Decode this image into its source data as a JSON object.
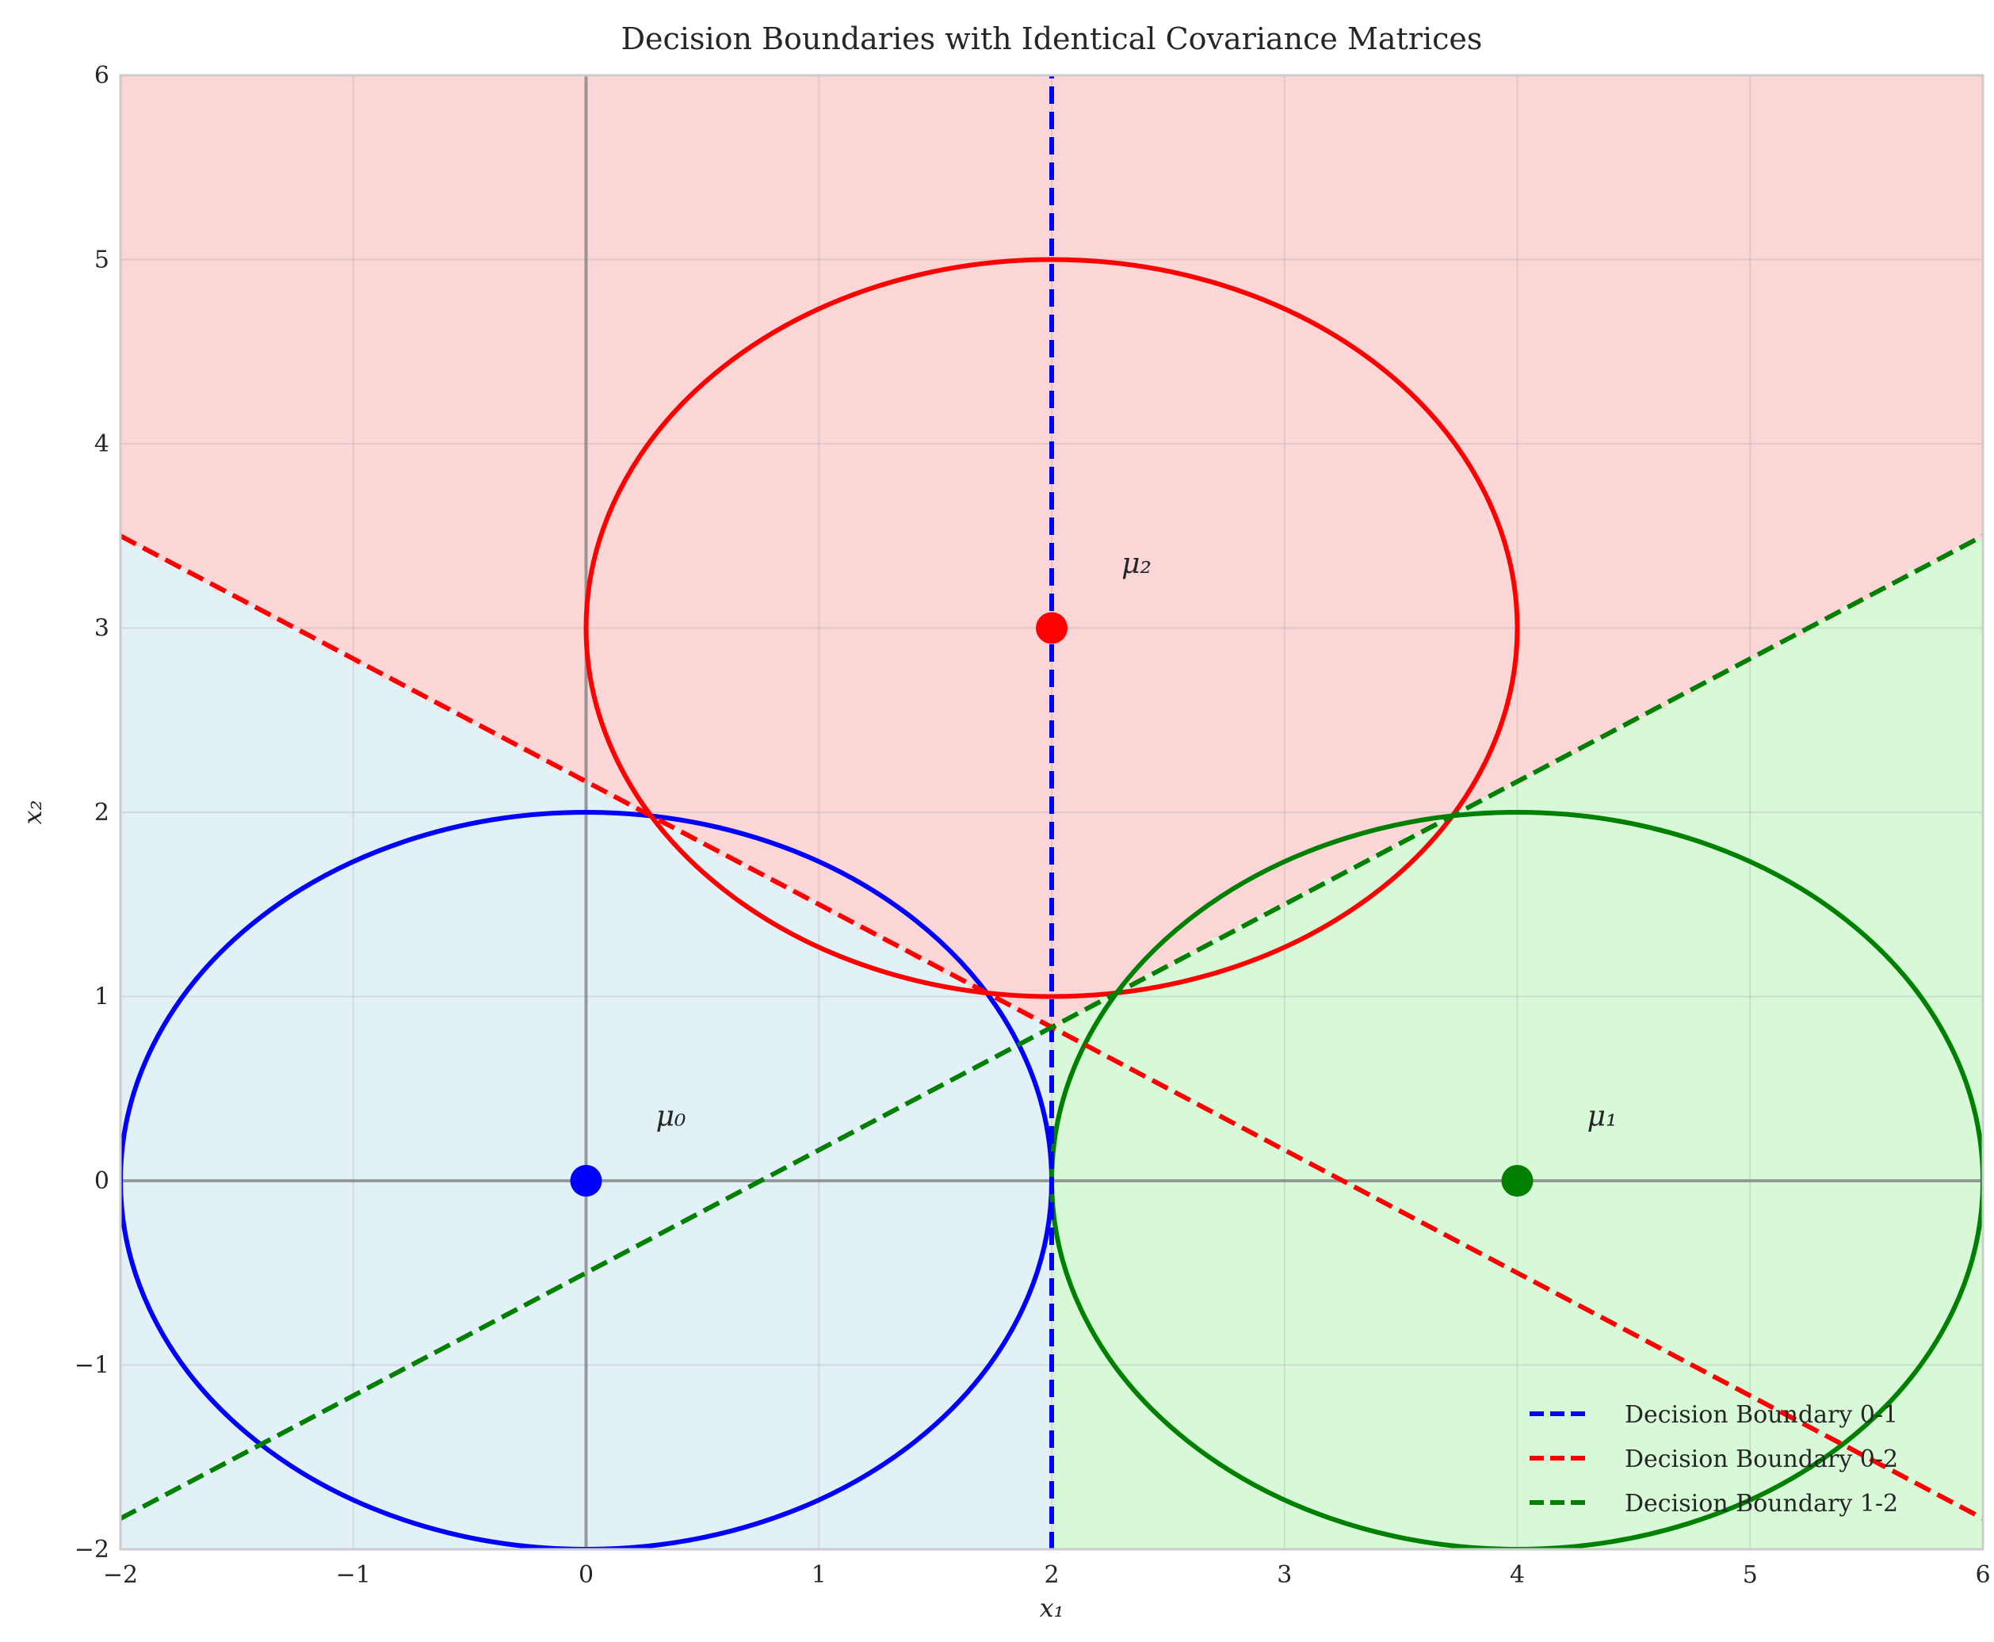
{
  "chart_data": {
    "type": "line",
    "title": "Decision Boundaries with Identical Covariance Matrices",
    "xlabel": "x₁",
    "ylabel": "x₂",
    "xlim": [
      -2,
      6
    ],
    "ylim": [
      -2,
      6
    ],
    "xticks": [
      -2,
      -1,
      0,
      1,
      2,
      3,
      4,
      5,
      6
    ],
    "yticks": [
      -2,
      -1,
      0,
      1,
      2,
      3,
      4,
      5,
      6
    ],
    "xtick_labels": [
      "−2",
      "−1",
      "0",
      "1",
      "2",
      "3",
      "4",
      "5",
      "6"
    ],
    "ytick_labels": [
      "−2",
      "−1",
      "0",
      "1",
      "2",
      "3",
      "4",
      "5",
      "6"
    ],
    "grid": true,
    "legend_position": "lower-right",
    "regions": [
      {
        "class": 0,
        "color": "#add8e6",
        "opacity": 0.35
      },
      {
        "class": 1,
        "color": "#90ee90",
        "opacity": 0.35
      },
      {
        "class": 2,
        "color": "#f08080",
        "opacity": 0.32
      }
    ],
    "means": [
      {
        "label": "μ₀",
        "x": 0,
        "y": 0,
        "color": "#0000ff"
      },
      {
        "label": "μ₁",
        "x": 4,
        "y": 0,
        "color": "#008000"
      },
      {
        "label": "μ₂",
        "x": 2,
        "y": 3,
        "color": "#ff0000"
      }
    ],
    "ellipses": [
      {
        "cx": 0,
        "cy": 0,
        "rx": 2,
        "ry": 2,
        "color": "#0000ff"
      },
      {
        "cx": 4,
        "cy": 0,
        "rx": 2,
        "ry": 2,
        "color": "#008000"
      },
      {
        "cx": 2,
        "cy": 3,
        "rx": 2,
        "ry": 2,
        "color": "#ff0000"
      }
    ],
    "series": [
      {
        "name": "Decision Boundary 0-1",
        "color": "#0000ff",
        "dash": true,
        "x": [
          2,
          2
        ],
        "y": [
          -2,
          6
        ]
      },
      {
        "name": "Decision Boundary 0-2",
        "color": "#ff0000",
        "dash": true,
        "x": [
          -2,
          6
        ],
        "y": [
          3.5,
          -1.833
        ]
      },
      {
        "name": "Decision Boundary 1-2",
        "color": "#008000",
        "dash": true,
        "x": [
          -2,
          6
        ],
        "y": [
          -1.833,
          3.5
        ]
      }
    ],
    "zero_lines": {
      "color": "#808080"
    }
  }
}
